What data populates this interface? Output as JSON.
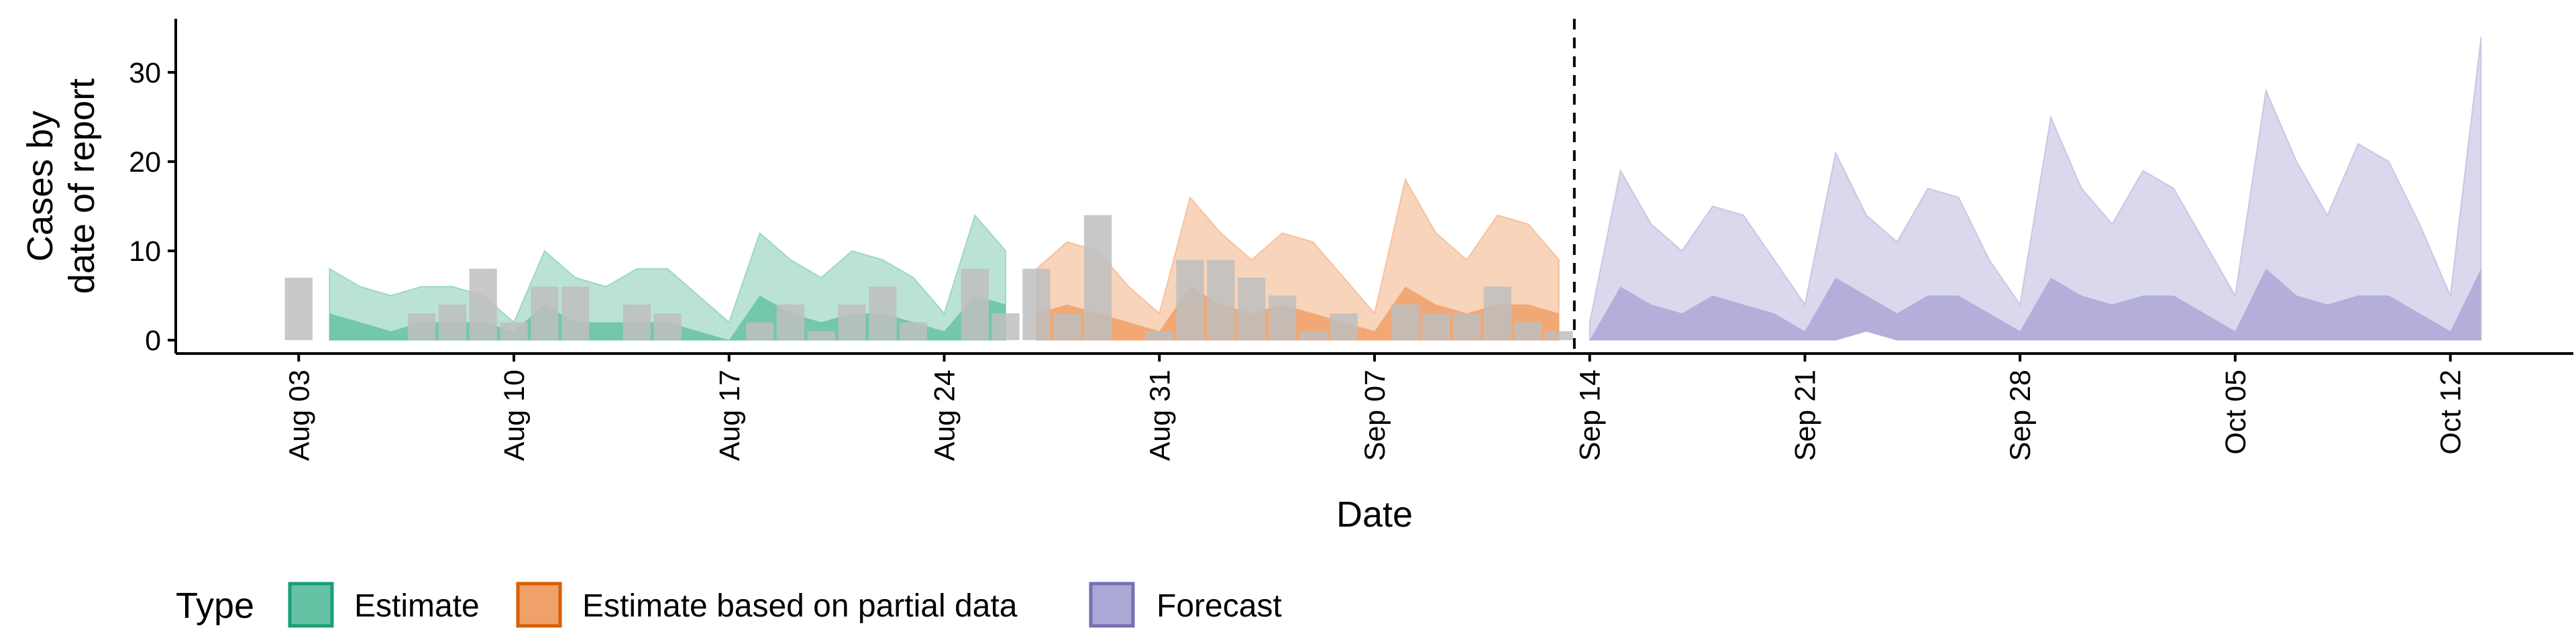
{
  "chart_data": {
    "type": "area",
    "title": "",
    "xlabel": "Date",
    "ylabel": "Cases by\ndate of report",
    "ylim": [
      -1.5,
      36
    ],
    "yticks": [
      0,
      10,
      20,
      30
    ],
    "x_date_range": [
      "2020-07-30",
      "2020-10-16"
    ],
    "x_ticks": [
      {
        "date": "2020-08-03",
        "label": "Aug 03"
      },
      {
        "date": "2020-08-10",
        "label": "Aug 10"
      },
      {
        "date": "2020-08-17",
        "label": "Aug 17"
      },
      {
        "date": "2020-08-24",
        "label": "Aug 24"
      },
      {
        "date": "2020-08-31",
        "label": "Aug 31"
      },
      {
        "date": "2020-09-07",
        "label": "Sep 07"
      },
      {
        "date": "2020-09-14",
        "label": "Sep 14"
      },
      {
        "date": "2020-09-21",
        "label": "Sep 21"
      },
      {
        "date": "2020-09-28",
        "label": "Sep 28"
      },
      {
        "date": "2020-10-05",
        "label": "Oct 05"
      },
      {
        "date": "2020-10-12",
        "label": "Oct 12"
      }
    ],
    "forecast_divider_date": "2020-09-13",
    "legend": {
      "title": "Type",
      "position": "bottom",
      "entries": [
        {
          "label": "Estimate",
          "fill": "#66C2A5",
          "stroke": "#1B9E77"
        },
        {
          "label": "Estimate based on partial data",
          "fill": "#F0A069",
          "stroke": "#D95F02"
        },
        {
          "label": "Forecast",
          "fill": "#ACA8D6",
          "stroke": "#7570B3"
        }
      ]
    },
    "observed_cases": {
      "color": "#BEBEBE",
      "points": [
        [
          "2020-08-03",
          7
        ],
        [
          "2020-08-04",
          0
        ],
        [
          "2020-08-05",
          0
        ],
        [
          "2020-08-06",
          0
        ],
        [
          "2020-08-07",
          3
        ],
        [
          "2020-08-08",
          4
        ],
        [
          "2020-08-09",
          8
        ],
        [
          "2020-08-10",
          2
        ],
        [
          "2020-08-11",
          6
        ],
        [
          "2020-08-12",
          6
        ],
        [
          "2020-08-13",
          0
        ],
        [
          "2020-08-14",
          4
        ],
        [
          "2020-08-15",
          3
        ],
        [
          "2020-08-16",
          0
        ],
        [
          "2020-08-17",
          0
        ],
        [
          "2020-08-18",
          2
        ],
        [
          "2020-08-19",
          4
        ],
        [
          "2020-08-20",
          1
        ],
        [
          "2020-08-21",
          4
        ],
        [
          "2020-08-22",
          6
        ],
        [
          "2020-08-23",
          2
        ],
        [
          "2020-08-24",
          0
        ],
        [
          "2020-08-25",
          8
        ],
        [
          "2020-08-26",
          3
        ],
        [
          "2020-08-27",
          8
        ],
        [
          "2020-08-28",
          3
        ],
        [
          "2020-08-29",
          14
        ],
        [
          "2020-08-30",
          0
        ],
        [
          "2020-08-31",
          1
        ],
        [
          "2020-09-01",
          9
        ],
        [
          "2020-09-02",
          9
        ],
        [
          "2020-09-03",
          7
        ],
        [
          "2020-09-04",
          5
        ],
        [
          "2020-09-05",
          1
        ],
        [
          "2020-09-06",
          3
        ],
        [
          "2020-09-07",
          0
        ],
        [
          "2020-09-08",
          4
        ],
        [
          "2020-09-09",
          3
        ],
        [
          "2020-09-10",
          3
        ],
        [
          "2020-09-11",
          6
        ],
        [
          "2020-09-12",
          2
        ],
        [
          "2020-09-13",
          1
        ]
      ]
    },
    "series": [
      {
        "name": "Estimate",
        "fill": "#66C2A5",
        "dates": [
          "2020-08-04",
          "2020-08-05",
          "2020-08-06",
          "2020-08-07",
          "2020-08-08",
          "2020-08-09",
          "2020-08-10",
          "2020-08-11",
          "2020-08-12",
          "2020-08-13",
          "2020-08-14",
          "2020-08-15",
          "2020-08-16",
          "2020-08-17",
          "2020-08-18",
          "2020-08-19",
          "2020-08-20",
          "2020-08-21",
          "2020-08-22",
          "2020-08-23",
          "2020-08-24",
          "2020-08-25",
          "2020-08-26"
        ],
        "median": [
          3,
          2,
          1,
          2,
          2,
          2,
          1,
          4,
          2,
          2,
          2,
          2,
          1,
          0,
          5,
          3,
          2,
          3,
          3,
          2,
          1,
          5,
          4
        ],
        "lower": [
          0,
          0,
          0,
          0,
          0,
          0,
          0,
          0,
          0,
          0,
          0,
          0,
          0,
          0,
          0,
          0,
          0,
          0,
          0,
          0,
          0,
          0,
          0
        ],
        "upper": [
          8,
          6,
          5,
          6,
          6,
          5,
          2,
          10,
          7,
          6,
          8,
          8,
          5,
          2,
          12,
          9,
          7,
          10,
          9,
          7,
          3,
          14,
          10
        ]
      },
      {
        "name": "Estimate based on partial data",
        "fill": "#F0A069",
        "dates": [
          "2020-08-27",
          "2020-08-28",
          "2020-08-29",
          "2020-08-30",
          "2020-08-31",
          "2020-09-01",
          "2020-09-02",
          "2020-09-03",
          "2020-09-04",
          "2020-09-05",
          "2020-09-06",
          "2020-09-07",
          "2020-09-08",
          "2020-09-09",
          "2020-09-10",
          "2020-09-11",
          "2020-09-12",
          "2020-09-13"
        ],
        "median": [
          3,
          4,
          3,
          2,
          1,
          6,
          4,
          3,
          4,
          3,
          2,
          1,
          6,
          4,
          3,
          4,
          4,
          3
        ],
        "lower": [
          0,
          0,
          0,
          0,
          0,
          0,
          0,
          0,
          0,
          0,
          0,
          0,
          0,
          0,
          0,
          0,
          0,
          0
        ],
        "upper": [
          8,
          11,
          10,
          6,
          3,
          16,
          12,
          9,
          12,
          11,
          7,
          3,
          18,
          12,
          9,
          14,
          13,
          9
        ]
      },
      {
        "name": "Forecast",
        "fill": "#ACA8D6",
        "dates": [
          "2020-09-14",
          "2020-09-15",
          "2020-09-16",
          "2020-09-17",
          "2020-09-18",
          "2020-09-19",
          "2020-09-20",
          "2020-09-21",
          "2020-09-22",
          "2020-09-23",
          "2020-09-24",
          "2020-09-25",
          "2020-09-26",
          "2020-09-27",
          "2020-09-28",
          "2020-09-29",
          "2020-09-30",
          "2020-10-01",
          "2020-10-02",
          "2020-10-03",
          "2020-10-04",
          "2020-10-05",
          "2020-10-06",
          "2020-10-07",
          "2020-10-08",
          "2020-10-09",
          "2020-10-10",
          "2020-10-11",
          "2020-10-12",
          "2020-10-13"
        ],
        "median": [
          0,
          6,
          4,
          3,
          5,
          4,
          3,
          1,
          7,
          5,
          3,
          5,
          5,
          3,
          1,
          7,
          5,
          4,
          5,
          5,
          3,
          1,
          8,
          5,
          4,
          5,
          5,
          3,
          1,
          8
        ],
        "lower": [
          0,
          0,
          0,
          0,
          0,
          0,
          0,
          0,
          0,
          1,
          0,
          0,
          0,
          0,
          0,
          0,
          0,
          0,
          0,
          0,
          0,
          0,
          0,
          0,
          0,
          0,
          0,
          0,
          0,
          0
        ],
        "upper": [
          2,
          19,
          13,
          10,
          15,
          14,
          9,
          4,
          21,
          14,
          11,
          17,
          16,
          9,
          4,
          25,
          17,
          13,
          19,
          17,
          11,
          5,
          28,
          20,
          14,
          22,
          20,
          13,
          5,
          34
        ]
      }
    ]
  }
}
